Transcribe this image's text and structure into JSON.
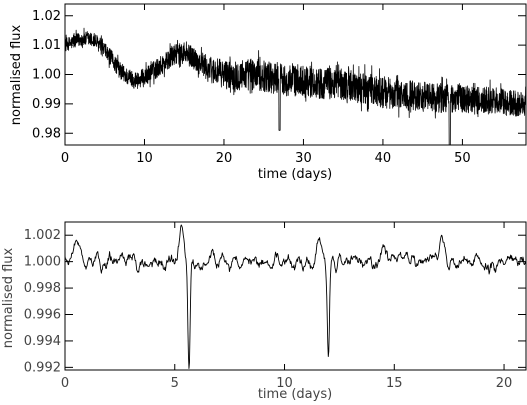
{
  "chart_data": [
    {
      "type": "line",
      "title": "",
      "xlabel": "time (days)",
      "ylabel": "normalised flux",
      "xlim": [
        0,
        58
      ],
      "ylim": [
        0.976,
        1.024
      ],
      "xticks": [
        0,
        10,
        20,
        30,
        40,
        50
      ],
      "yticks": [
        0.98,
        0.99,
        1.0,
        1.01,
        1.02
      ],
      "ytick_labels": [
        "0.98",
        "0.99",
        "1.00",
        "1.01",
        "1.02"
      ],
      "grid": false,
      "trend": {
        "x": [
          0,
          1,
          2,
          3,
          4,
          5,
          6,
          7,
          8,
          9,
          10,
          11,
          12,
          13,
          14,
          15,
          16,
          17,
          18,
          19,
          20,
          22,
          24,
          26,
          28,
          30,
          32,
          34,
          36,
          38,
          40,
          42,
          44,
          46,
          48,
          50,
          52,
          54,
          56,
          58
        ],
        "y": [
          1.01,
          1.011,
          1.012,
          1.012,
          1.011,
          1.008,
          1.005,
          1.001,
          0.999,
          0.998,
          0.999,
          1.001,
          1.003,
          1.005,
          1.007,
          1.007,
          1.006,
          1.004,
          1.002,
          1.001,
          1.0,
          1.0,
          1.0,
          0.999,
          0.998,
          0.998,
          0.997,
          0.997,
          0.996,
          0.995,
          0.994,
          0.993,
          0.993,
          0.992,
          0.992,
          0.992,
          0.991,
          0.991,
          0.99,
          0.99
        ]
      },
      "noise_amplitude": [
        {
          "x": 0,
          "amp": 0.0025
        },
        {
          "x": 5,
          "amp": 0.003
        },
        {
          "x": 15,
          "amp": 0.004
        },
        {
          "x": 22,
          "amp": 0.006
        },
        {
          "x": 40,
          "amp": 0.006
        },
        {
          "x": 58,
          "amp": 0.005
        }
      ],
      "dips": [
        {
          "x": 27.0,
          "y": 0.981
        },
        {
          "x": 48.4,
          "y": 0.976
        }
      ]
    },
    {
      "type": "line",
      "title": "",
      "xlabel": "time (days)",
      "ylabel": "normalised flux",
      "xlim": [
        0,
        21
      ],
      "ylim": [
        0.9918,
        1.003
      ],
      "xticks": [
        0,
        5,
        10,
        15,
        20
      ],
      "yticks": [
        0.992,
        0.994,
        0.996,
        0.998,
        1.0,
        1.002
      ],
      "ytick_labels": [
        "0.992",
        "0.994",
        "0.996",
        "0.998",
        "1.000",
        "1.002"
      ],
      "grid": false,
      "baseline": 1.0,
      "noise_amplitude": 0.0008,
      "peaks": [
        {
          "x": 0.5,
          "y": 1.0018
        },
        {
          "x": 5.3,
          "y": 1.003
        },
        {
          "x": 11.6,
          "y": 1.0016
        },
        {
          "x": 14.6,
          "y": 1.0017
        },
        {
          "x": 17.2,
          "y": 1.002
        }
      ],
      "dips": [
        {
          "x": 5.65,
          "y": 0.9918
        },
        {
          "x": 12.0,
          "y": 0.9925
        }
      ]
    }
  ]
}
